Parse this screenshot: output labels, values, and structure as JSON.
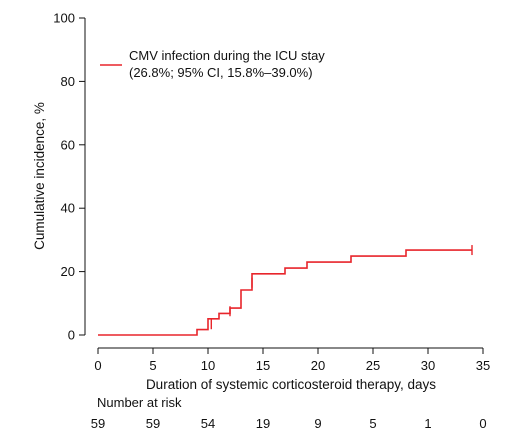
{
  "chart_data": {
    "type": "line",
    "subtype": "cumulative-incidence-step",
    "xlabel": "Duration of systemic corticosteroid therapy, days",
    "ylabel": "Cumulative incidence, %",
    "xlim": [
      0,
      35
    ],
    "ylim": [
      0,
      100
    ],
    "xticks": [
      0,
      5,
      10,
      15,
      20,
      25,
      30,
      35
    ],
    "yticks": [
      0,
      20,
      40,
      60,
      80,
      100
    ],
    "grid": false,
    "legend_position": "top-left",
    "series": [
      {
        "name": "CMV infection during the ICU stay",
        "name_line2": "(26.8%; 95% CI, 15.8%–39.0%)",
        "color": "#e8252b",
        "steps": [
          {
            "x": 0,
            "y": 0
          },
          {
            "x": 9,
            "y": 1.7
          },
          {
            "x": 10,
            "y": 5.1
          },
          {
            "x": 11,
            "y": 6.8
          },
          {
            "x": 12,
            "y": 8.5
          },
          {
            "x": 13,
            "y": 14.2
          },
          {
            "x": 14,
            "y": 19.3
          },
          {
            "x": 17,
            "y": 21.1
          },
          {
            "x": 19,
            "y": 23.0
          },
          {
            "x": 23,
            "y": 24.9
          },
          {
            "x": 28,
            "y": 26.8
          },
          {
            "x": 34,
            "y": 26.8
          }
        ],
        "censored": [
          {
            "x": 10.3,
            "y": 3.4
          },
          {
            "x": 12,
            "y": 7.5
          },
          {
            "x": 14,
            "y": 16.5
          },
          {
            "x": 34,
            "y": 26.8
          }
        ]
      }
    ],
    "risk_table": {
      "title": "Number at risk",
      "x": [
        0,
        5,
        10,
        15,
        20,
        25,
        30,
        35
      ],
      "values": [
        "59",
        "59",
        "54",
        "19",
        "9",
        "5",
        "1",
        "0"
      ]
    }
  }
}
